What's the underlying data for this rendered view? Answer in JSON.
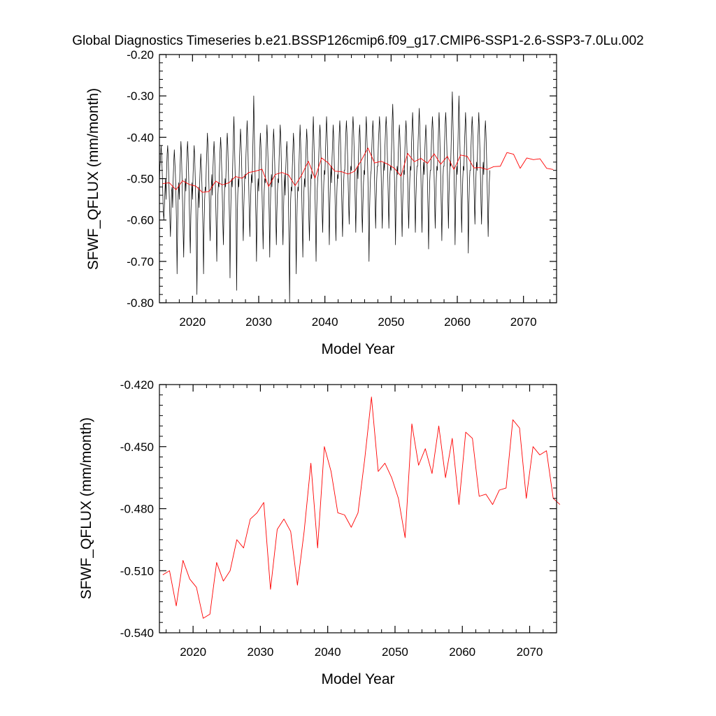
{
  "title": "Global Diagnostics Timeseries b.e21.BSSP126cmip6.f09_g17.CMIP6-SSP1-2.6-SSP3-7.0Lu.002",
  "colors": {
    "monthly": "#000000",
    "annual": "#ff0000",
    "axes": "#000000",
    "background": "#ffffff"
  },
  "chart_data": [
    {
      "type": "line",
      "xlabel": "Model Year",
      "ylabel": "SFWF_QFLUX (mm/month)",
      "xlim": [
        2015,
        2075
      ],
      "ylim": [
        -0.8,
        -0.2
      ],
      "xticks": [
        2020,
        2030,
        2040,
        2050,
        2060,
        2070
      ],
      "yticks": [
        "-0.80",
        "-0.70",
        "-0.60",
        "-0.50",
        "-0.40",
        "-0.30",
        "-0.20"
      ],
      "grid": false,
      "series": [
        {
          "role": "monthly",
          "color": "#000000",
          "x_start": 2015.0,
          "x_step": 0.08333,
          "values": [
            -0.51,
            -0.47,
            -0.45,
            -0.42,
            -0.44,
            -0.48,
            -0.53,
            -0.58,
            -0.6,
            -0.57,
            -0.53,
            -0.5,
            -0.55,
            -0.48,
            -0.44,
            -0.42,
            -0.45,
            -0.5,
            -0.55,
            -0.6,
            -0.64,
            -0.58,
            -0.53,
            -0.52,
            -0.57,
            -0.5,
            -0.46,
            -0.43,
            -0.46,
            -0.49,
            -0.54,
            -0.61,
            -0.73,
            -0.62,
            -0.54,
            -0.51,
            -0.55,
            -0.49,
            -0.45,
            -0.41,
            -0.44,
            -0.5,
            -0.56,
            -0.63,
            -0.69,
            -0.6,
            -0.53,
            -0.5,
            -0.53,
            -0.48,
            -0.44,
            -0.41,
            -0.44,
            -0.49,
            -0.55,
            -0.62,
            -0.68,
            -0.59,
            -0.54,
            -0.51,
            -0.55,
            -0.49,
            -0.45,
            -0.42,
            -0.45,
            -0.5,
            -0.56,
            -0.66,
            -0.78,
            -0.63,
            -0.55,
            -0.52,
            -0.57,
            -0.51,
            -0.47,
            -0.44,
            -0.47,
            -0.51,
            -0.56,
            -0.63,
            -0.73,
            -0.61,
            -0.55,
            -0.52,
            -0.53,
            -0.47,
            -0.43,
            -0.39,
            -0.42,
            -0.47,
            -0.53,
            -0.6,
            -0.65,
            -0.57,
            -0.52,
            -0.49,
            -0.54,
            -0.48,
            -0.44,
            -0.41,
            -0.44,
            -0.49,
            -0.55,
            -0.62,
            -0.7,
            -0.6,
            -0.54,
            -0.51,
            -0.52,
            -0.47,
            -0.43,
            -0.4,
            -0.43,
            -0.48,
            -0.54,
            -0.61,
            -0.66,
            -0.58,
            -0.53,
            -0.5,
            -0.52,
            -0.47,
            -0.42,
            -0.39,
            -0.42,
            -0.48,
            -0.53,
            -0.6,
            -0.74,
            -0.6,
            -0.53,
            -0.5,
            -0.52,
            -0.46,
            -0.4,
            -0.35,
            -0.4,
            -0.47,
            -0.53,
            -0.6,
            -0.77,
            -0.61,
            -0.54,
            -0.5,
            -0.52,
            -0.46,
            -0.42,
            -0.38,
            -0.41,
            -0.46,
            -0.52,
            -0.59,
            -0.65,
            -0.57,
            -0.52,
            -0.49,
            -0.5,
            -0.44,
            -0.4,
            -0.36,
            -0.4,
            -0.46,
            -0.52,
            -0.59,
            -0.64,
            -0.57,
            -0.52,
            -0.49,
            -0.51,
            -0.45,
            -0.38,
            -0.3,
            -0.38,
            -0.46,
            -0.53,
            -0.6,
            -0.7,
            -0.59,
            -0.53,
            -0.5,
            -0.53,
            -0.47,
            -0.43,
            -0.39,
            -0.42,
            -0.47,
            -0.53,
            -0.6,
            -0.67,
            -0.58,
            -0.53,
            -0.5,
            -0.51,
            -0.45,
            -0.41,
            -0.37,
            -0.41,
            -0.46,
            -0.52,
            -0.59,
            -0.69,
            -0.58,
            -0.52,
            -0.49,
            -0.52,
            -0.46,
            -0.42,
            -0.38,
            -0.41,
            -0.46,
            -0.52,
            -0.6,
            -0.66,
            -0.58,
            -0.53,
            -0.5,
            -0.51,
            -0.45,
            -0.41,
            -0.37,
            -0.4,
            -0.46,
            -0.52,
            -0.6,
            -0.66,
            -0.58,
            -0.52,
            -0.49,
            -0.54,
            -0.48,
            -0.44,
            -0.41,
            -0.44,
            -0.49,
            -0.56,
            -0.66,
            -0.8,
            -0.63,
            -0.55,
            -0.52,
            -0.53,
            -0.47,
            -0.43,
            -0.39,
            -0.42,
            -0.47,
            -0.53,
            -0.62,
            -0.73,
            -0.61,
            -0.55,
            -0.52,
            -0.53,
            -0.47,
            -0.42,
            -0.37,
            -0.41,
            -0.47,
            -0.53,
            -0.61,
            -0.69,
            -0.59,
            -0.53,
            -0.5,
            -0.52,
            -0.46,
            -0.42,
            -0.38,
            -0.41,
            -0.47,
            -0.53,
            -0.6,
            -0.65,
            -0.57,
            -0.52,
            -0.49,
            -0.5,
            -0.45,
            -0.4,
            -0.35,
            -0.4,
            -0.46,
            -0.53,
            -0.61,
            -0.7,
            -0.59,
            -0.53,
            -0.5,
            -0.49,
            -0.44,
            -0.4,
            -0.37,
            -0.4,
            -0.45,
            -0.51,
            -0.58,
            -0.63,
            -0.56,
            -0.51,
            -0.48,
            -0.49,
            -0.44,
            -0.39,
            -0.35,
            -0.39,
            -0.44,
            -0.5,
            -0.57,
            -0.66,
            -0.56,
            -0.5,
            -0.47,
            -0.51,
            -0.45,
            -0.41,
            -0.37,
            -0.4,
            -0.46,
            -0.52,
            -0.59,
            -0.65,
            -0.57,
            -0.52,
            -0.49,
            -0.5,
            -0.44,
            -0.39,
            -0.36,
            -0.39,
            -0.45,
            -0.51,
            -0.58,
            -0.64,
            -0.56,
            -0.51,
            -0.48,
            -0.48,
            -0.43,
            -0.39,
            -0.36,
            -0.39,
            -0.44,
            -0.5,
            -0.56,
            -0.61,
            -0.54,
            -0.49,
            -0.47,
            -0.48,
            -0.42,
            -0.38,
            -0.35,
            -0.38,
            -0.43,
            -0.49,
            -0.56,
            -0.63,
            -0.55,
            -0.5,
            -0.47,
            -0.5,
            -0.44,
            -0.4,
            -0.37,
            -0.4,
            -0.45,
            -0.51,
            -0.58,
            -0.63,
            -0.56,
            -0.51,
            -0.48,
            -0.49,
            -0.44,
            -0.39,
            -0.35,
            -0.39,
            -0.44,
            -0.5,
            -0.59,
            -0.7,
            -0.58,
            -0.52,
            -0.49,
            -0.48,
            -0.43,
            -0.39,
            -0.36,
            -0.39,
            -0.44,
            -0.5,
            -0.56,
            -0.62,
            -0.55,
            -0.5,
            -0.47,
            -0.47,
            -0.41,
            -0.38,
            -0.35,
            -0.38,
            -0.43,
            -0.49,
            -0.56,
            -0.62,
            -0.54,
            -0.49,
            -0.46,
            -0.48,
            -0.42,
            -0.38,
            -0.35,
            -0.38,
            -0.43,
            -0.49,
            -0.56,
            -0.62,
            -0.54,
            -0.49,
            -0.47,
            -0.48,
            -0.42,
            -0.36,
            -0.32,
            -0.37,
            -0.43,
            -0.49,
            -0.56,
            -0.66,
            -0.56,
            -0.5,
            -0.47,
            -0.49,
            -0.44,
            -0.4,
            -0.37,
            -0.4,
            -0.45,
            -0.51,
            -0.58,
            -0.64,
            -0.56,
            -0.51,
            -0.48,
            -0.49,
            -0.43,
            -0.39,
            -0.36,
            -0.39,
            -0.44,
            -0.5,
            -0.57,
            -0.62,
            -0.55,
            -0.5,
            -0.47,
            -0.48,
            -0.42,
            -0.38,
            -0.34,
            -0.38,
            -0.43,
            -0.49,
            -0.56,
            -0.63,
            -0.55,
            -0.5,
            -0.47,
            -0.47,
            -0.41,
            -0.37,
            -0.33,
            -0.37,
            -0.43,
            -0.49,
            -0.56,
            -0.63,
            -0.55,
            -0.49,
            -0.46,
            -0.49,
            -0.44,
            -0.4,
            -0.37,
            -0.4,
            -0.45,
            -0.51,
            -0.58,
            -0.67,
            -0.57,
            -0.51,
            -0.48,
            -0.48,
            -0.42,
            -0.38,
            -0.35,
            -0.38,
            -0.43,
            -0.49,
            -0.56,
            -0.62,
            -0.55,
            -0.5,
            -0.47,
            -0.48,
            -0.43,
            -0.38,
            -0.34,
            -0.38,
            -0.44,
            -0.5,
            -0.57,
            -0.65,
            -0.56,
            -0.5,
            -0.47,
            -0.47,
            -0.41,
            -0.37,
            -0.34,
            -0.37,
            -0.42,
            -0.48,
            -0.55,
            -0.62,
            -0.54,
            -0.49,
            -0.46,
            -0.47,
            -0.41,
            -0.35,
            -0.29,
            -0.35,
            -0.42,
            -0.48,
            -0.55,
            -0.66,
            -0.56,
            -0.5,
            -0.47,
            -0.49,
            -0.43,
            -0.36,
            -0.3,
            -0.36,
            -0.43,
            -0.49,
            -0.56,
            -0.63,
            -0.55,
            -0.5,
            -0.47,
            -0.48,
            -0.42,
            -0.38,
            -0.34,
            -0.38,
            -0.43,
            -0.49,
            -0.56,
            -0.68,
            -0.57,
            -0.51,
            -0.48,
            -0.48,
            -0.42,
            -0.38,
            -0.35,
            -0.38,
            -0.43,
            -0.49,
            -0.56,
            -0.61,
            -0.54,
            -0.49,
            -0.46,
            -0.48,
            -0.42,
            -0.38,
            -0.34,
            -0.38,
            -0.43,
            -0.49,
            -0.56,
            -0.61,
            -0.54,
            -0.49,
            -0.46,
            -0.49,
            -0.43,
            -0.39,
            -0.36,
            -0.39,
            -0.44,
            -0.5,
            -0.57,
            -0.64,
            -0.56,
            -0.51,
            -0.48
          ]
        },
        {
          "role": "annual-mean",
          "color": "#ff0000",
          "x": [
            2015.5,
            2016.5,
            2017.5,
            2018.5,
            2019.5,
            2020.5,
            2021.5,
            2022.5,
            2023.5,
            2024.5,
            2025.5,
            2026.5,
            2027.5,
            2028.5,
            2029.5,
            2030.5,
            2031.5,
            2032.5,
            2033.5,
            2034.5,
            2035.5,
            2036.5,
            2037.5,
            2038.5,
            2039.5,
            2040.5,
            2041.5,
            2042.5,
            2043.5,
            2044.5,
            2045.5,
            2046.5,
            2047.5,
            2048.5,
            2049.5,
            2050.5,
            2051.5,
            2052.5,
            2053.5,
            2054.5,
            2055.5,
            2056.5,
            2057.5,
            2058.5,
            2059.5,
            2060.5,
            2061.5,
            2062.5,
            2063.5,
            2064.5,
            2065.5,
            2066.5,
            2067.5,
            2068.5,
            2069.5,
            2070.5,
            2071.5,
            2072.5,
            2073.5,
            2074.5
          ],
          "values": [
            -0.512,
            -0.51,
            -0.527,
            -0.505,
            -0.514,
            -0.518,
            -0.533,
            -0.531,
            -0.506,
            -0.515,
            -0.51,
            -0.495,
            -0.499,
            -0.485,
            -0.482,
            -0.477,
            -0.519,
            -0.49,
            -0.485,
            -0.491,
            -0.517,
            -0.491,
            -0.458,
            -0.499,
            -0.45,
            -0.462,
            -0.482,
            -0.483,
            -0.489,
            -0.482,
            -0.456,
            -0.426,
            -0.462,
            -0.458,
            -0.465,
            -0.475,
            -0.494,
            -0.439,
            -0.459,
            -0.451,
            -0.463,
            -0.44,
            -0.465,
            -0.446,
            -0.478,
            -0.443,
            -0.446,
            -0.474,
            -0.473,
            -0.478,
            -0.471,
            -0.47,
            -0.437,
            -0.441,
            -0.475,
            -0.45,
            -0.454,
            -0.452,
            -0.475,
            -0.478
          ]
        }
      ]
    },
    {
      "type": "line",
      "xlabel": "Model Year",
      "ylabel": "SFWF_QFLUX (mm/month)",
      "xlim": [
        2015,
        2074
      ],
      "ylim": [
        -0.54,
        -0.42
      ],
      "xticks": [
        2020,
        2030,
        2040,
        2050,
        2060,
        2070
      ],
      "yticks": [
        "-0.540",
        "-0.510",
        "-0.480",
        "-0.450",
        "-0.420"
      ],
      "grid": false,
      "series": [
        {
          "role": "annual-mean",
          "color": "#ff0000",
          "x": [
            2015.5,
            2016.5,
            2017.5,
            2018.5,
            2019.5,
            2020.5,
            2021.5,
            2022.5,
            2023.5,
            2024.5,
            2025.5,
            2026.5,
            2027.5,
            2028.5,
            2029.5,
            2030.5,
            2031.5,
            2032.5,
            2033.5,
            2034.5,
            2035.5,
            2036.5,
            2037.5,
            2038.5,
            2039.5,
            2040.5,
            2041.5,
            2042.5,
            2043.5,
            2044.5,
            2045.5,
            2046.5,
            2047.5,
            2048.5,
            2049.5,
            2050.5,
            2051.5,
            2052.5,
            2053.5,
            2054.5,
            2055.5,
            2056.5,
            2057.5,
            2058.5,
            2059.5,
            2060.5,
            2061.5,
            2062.5,
            2063.5,
            2064.5,
            2065.5,
            2066.5,
            2067.5,
            2068.5,
            2069.5,
            2070.5,
            2071.5,
            2072.5,
            2073.5,
            2074.5
          ],
          "values": [
            -0.512,
            -0.51,
            -0.527,
            -0.505,
            -0.514,
            -0.518,
            -0.533,
            -0.531,
            -0.506,
            -0.515,
            -0.51,
            -0.495,
            -0.499,
            -0.485,
            -0.482,
            -0.477,
            -0.519,
            -0.49,
            -0.485,
            -0.491,
            -0.517,
            -0.491,
            -0.458,
            -0.499,
            -0.45,
            -0.462,
            -0.482,
            -0.483,
            -0.489,
            -0.482,
            -0.456,
            -0.426,
            -0.462,
            -0.458,
            -0.465,
            -0.475,
            -0.494,
            -0.439,
            -0.459,
            -0.451,
            -0.463,
            -0.44,
            -0.465,
            -0.446,
            -0.478,
            -0.443,
            -0.446,
            -0.474,
            -0.473,
            -0.478,
            -0.471,
            -0.47,
            -0.437,
            -0.441,
            -0.475,
            -0.45,
            -0.454,
            -0.452,
            -0.475,
            -0.478
          ]
        }
      ]
    }
  ]
}
